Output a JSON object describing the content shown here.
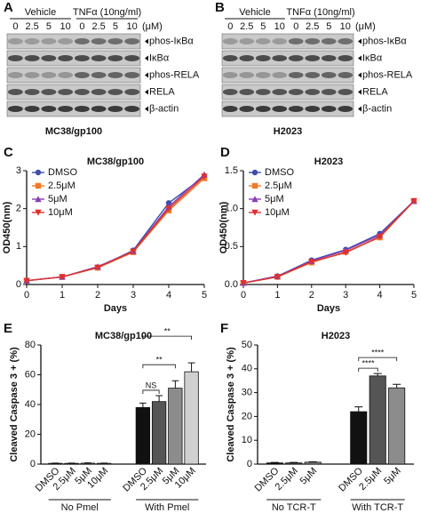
{
  "blots": [
    {
      "label": "A",
      "groups": [
        "Vehicle",
        "TNFα (10ng/ml)"
      ],
      "concentrations": [
        "0",
        "2.5",
        "5",
        "10",
        "0",
        "2.5",
        "5",
        "10"
      ],
      "unit": "(μM)",
      "rows": [
        "phos-IκBα",
        "IκBα",
        "phos-RELA",
        "RELA",
        "β-actin"
      ],
      "cell_line": "MC38/gp100"
    },
    {
      "label": "B",
      "groups": [
        "Vehicle",
        "TNFα (10ng/ml)"
      ],
      "concentrations": [
        "0",
        "2.5",
        "5",
        "10",
        "0",
        "2.5",
        "5",
        "10"
      ],
      "unit": "(μM)",
      "rows": [
        "phos-IκBα",
        "IκBα",
        "phos-RELA",
        "RELA",
        "β-actin"
      ],
      "cell_line": "H2023"
    }
  ],
  "chart_data": [
    {
      "panel": "C",
      "type": "line",
      "title": "MC38/gp100",
      "x_label": "Days",
      "y_label": "OD450(nm)",
      "x": [
        0,
        1,
        2,
        3,
        4,
        5
      ],
      "xlim": [
        0,
        5
      ],
      "xticks": [
        0,
        1,
        2,
        3,
        4,
        5
      ],
      "ylim": [
        0,
        3
      ],
      "yticks": [
        0,
        1,
        2,
        3
      ],
      "legend": "upper left",
      "series": [
        {
          "name": "DMSO",
          "color": "#3b4fa8",
          "marker": "circle",
          "values": [
            0.1,
            0.2,
            0.45,
            0.9,
            2.15,
            2.85
          ]
        },
        {
          "name": "2.5μM",
          "color": "#f07a28",
          "marker": "square",
          "values": [
            0.1,
            0.2,
            0.44,
            0.85,
            1.95,
            2.8
          ]
        },
        {
          "name": "5μM",
          "color": "#8a3fb5",
          "marker": "triangle-up",
          "values": [
            0.1,
            0.2,
            0.47,
            0.88,
            2.05,
            2.9
          ]
        },
        {
          "name": "10μM",
          "color": "#e0302e",
          "marker": "triangle-down",
          "values": [
            0.1,
            0.2,
            0.45,
            0.87,
            2.0,
            2.85
          ]
        }
      ]
    },
    {
      "panel": "D",
      "type": "line",
      "title": "H2023",
      "x_label": "Days",
      "y_label": "OD450(nm)",
      "x": [
        0,
        1,
        2,
        3,
        4,
        5
      ],
      "xlim": [
        0,
        5
      ],
      "xticks": [
        0,
        1,
        2,
        3,
        4,
        5
      ],
      "ylim": [
        0,
        1.5
      ],
      "yticks": [
        {
          "value": 0,
          "label": "0.0"
        },
        {
          "value": 0.5,
          "label": "0.5"
        },
        {
          "value": 1,
          "label": "1.0"
        },
        {
          "value": 1.5,
          "label": "1.5"
        }
      ],
      "legend": "upper left",
      "series": [
        {
          "name": "DMSO",
          "color": "#3b4fa8",
          "marker": "circle",
          "values": [
            0.02,
            0.11,
            0.32,
            0.46,
            0.67,
            1.1
          ]
        },
        {
          "name": "2.5μM",
          "color": "#f07a28",
          "marker": "square",
          "values": [
            0.02,
            0.1,
            0.29,
            0.43,
            0.62,
            1.1
          ]
        },
        {
          "name": "5μM",
          "color": "#8a3fb5",
          "marker": "triangle-up",
          "values": [
            0.02,
            0.11,
            0.31,
            0.45,
            0.65,
            1.1
          ]
        },
        {
          "name": "10μM",
          "color": "#e0302e",
          "marker": "triangle-down",
          "values": [
            0.02,
            0.1,
            0.3,
            0.42,
            0.63,
            1.1
          ]
        }
      ]
    },
    {
      "panel": "E",
      "type": "bar",
      "title": "MC38/gp100",
      "y_label": "Cleaved Caspase 3 + (%)",
      "ylim": [
        0,
        80
      ],
      "yticks": [
        0,
        20,
        40,
        60,
        80
      ],
      "colors": [
        "#111111",
        "#555555",
        "#8c8c8c",
        "#d0d0d0"
      ],
      "groups": [
        {
          "name": "No Pmel",
          "categories": [
            "DMSO",
            "2.5μM",
            "5μM",
            "10μM"
          ],
          "values": [
            0.5,
            0.5,
            0.6,
            0.5
          ],
          "errors": [
            0.2,
            0.2,
            0.2,
            0.2
          ]
        },
        {
          "name": "With Pmel",
          "categories": [
            "DMSO",
            "2.5μM",
            "5μM",
            "10μM"
          ],
          "values": [
            38,
            42,
            51,
            62
          ],
          "errors": [
            3,
            4,
            5,
            6
          ]
        }
      ],
      "annotations": [
        {
          "text": "NS",
          "group": 1,
          "between": [
            0,
            1
          ]
        },
        {
          "text": "**",
          "group": 1,
          "between": [
            0,
            2
          ]
        },
        {
          "text": "**",
          "group": 1,
          "between": [
            0,
            3
          ]
        }
      ]
    },
    {
      "panel": "F",
      "type": "bar",
      "title": "H2023",
      "y_label": "Cleaved Caspase 3 + (%)",
      "ylim": [
        0,
        50
      ],
      "yticks": [
        0,
        10,
        20,
        30,
        40,
        50
      ],
      "colors": [
        "#111111",
        "#555555",
        "#8c8c8c"
      ],
      "groups": [
        {
          "name": "No TCR-T",
          "categories": [
            "DMSO",
            "2.5μM",
            "5μM"
          ],
          "values": [
            0.5,
            0.5,
            0.8
          ],
          "errors": [
            0.2,
            0.2,
            0.2
          ]
        },
        {
          "name": "With TCR-T",
          "categories": [
            "DMSO",
            "2.5μM",
            "5μM"
          ],
          "values": [
            22,
            37,
            32
          ],
          "errors": [
            2,
            1,
            1.5
          ]
        }
      ],
      "annotations": [
        {
          "text": "****",
          "group": 1,
          "between": [
            0,
            1
          ]
        },
        {
          "text": "****",
          "group": 1,
          "between": [
            0,
            2
          ]
        }
      ]
    }
  ]
}
